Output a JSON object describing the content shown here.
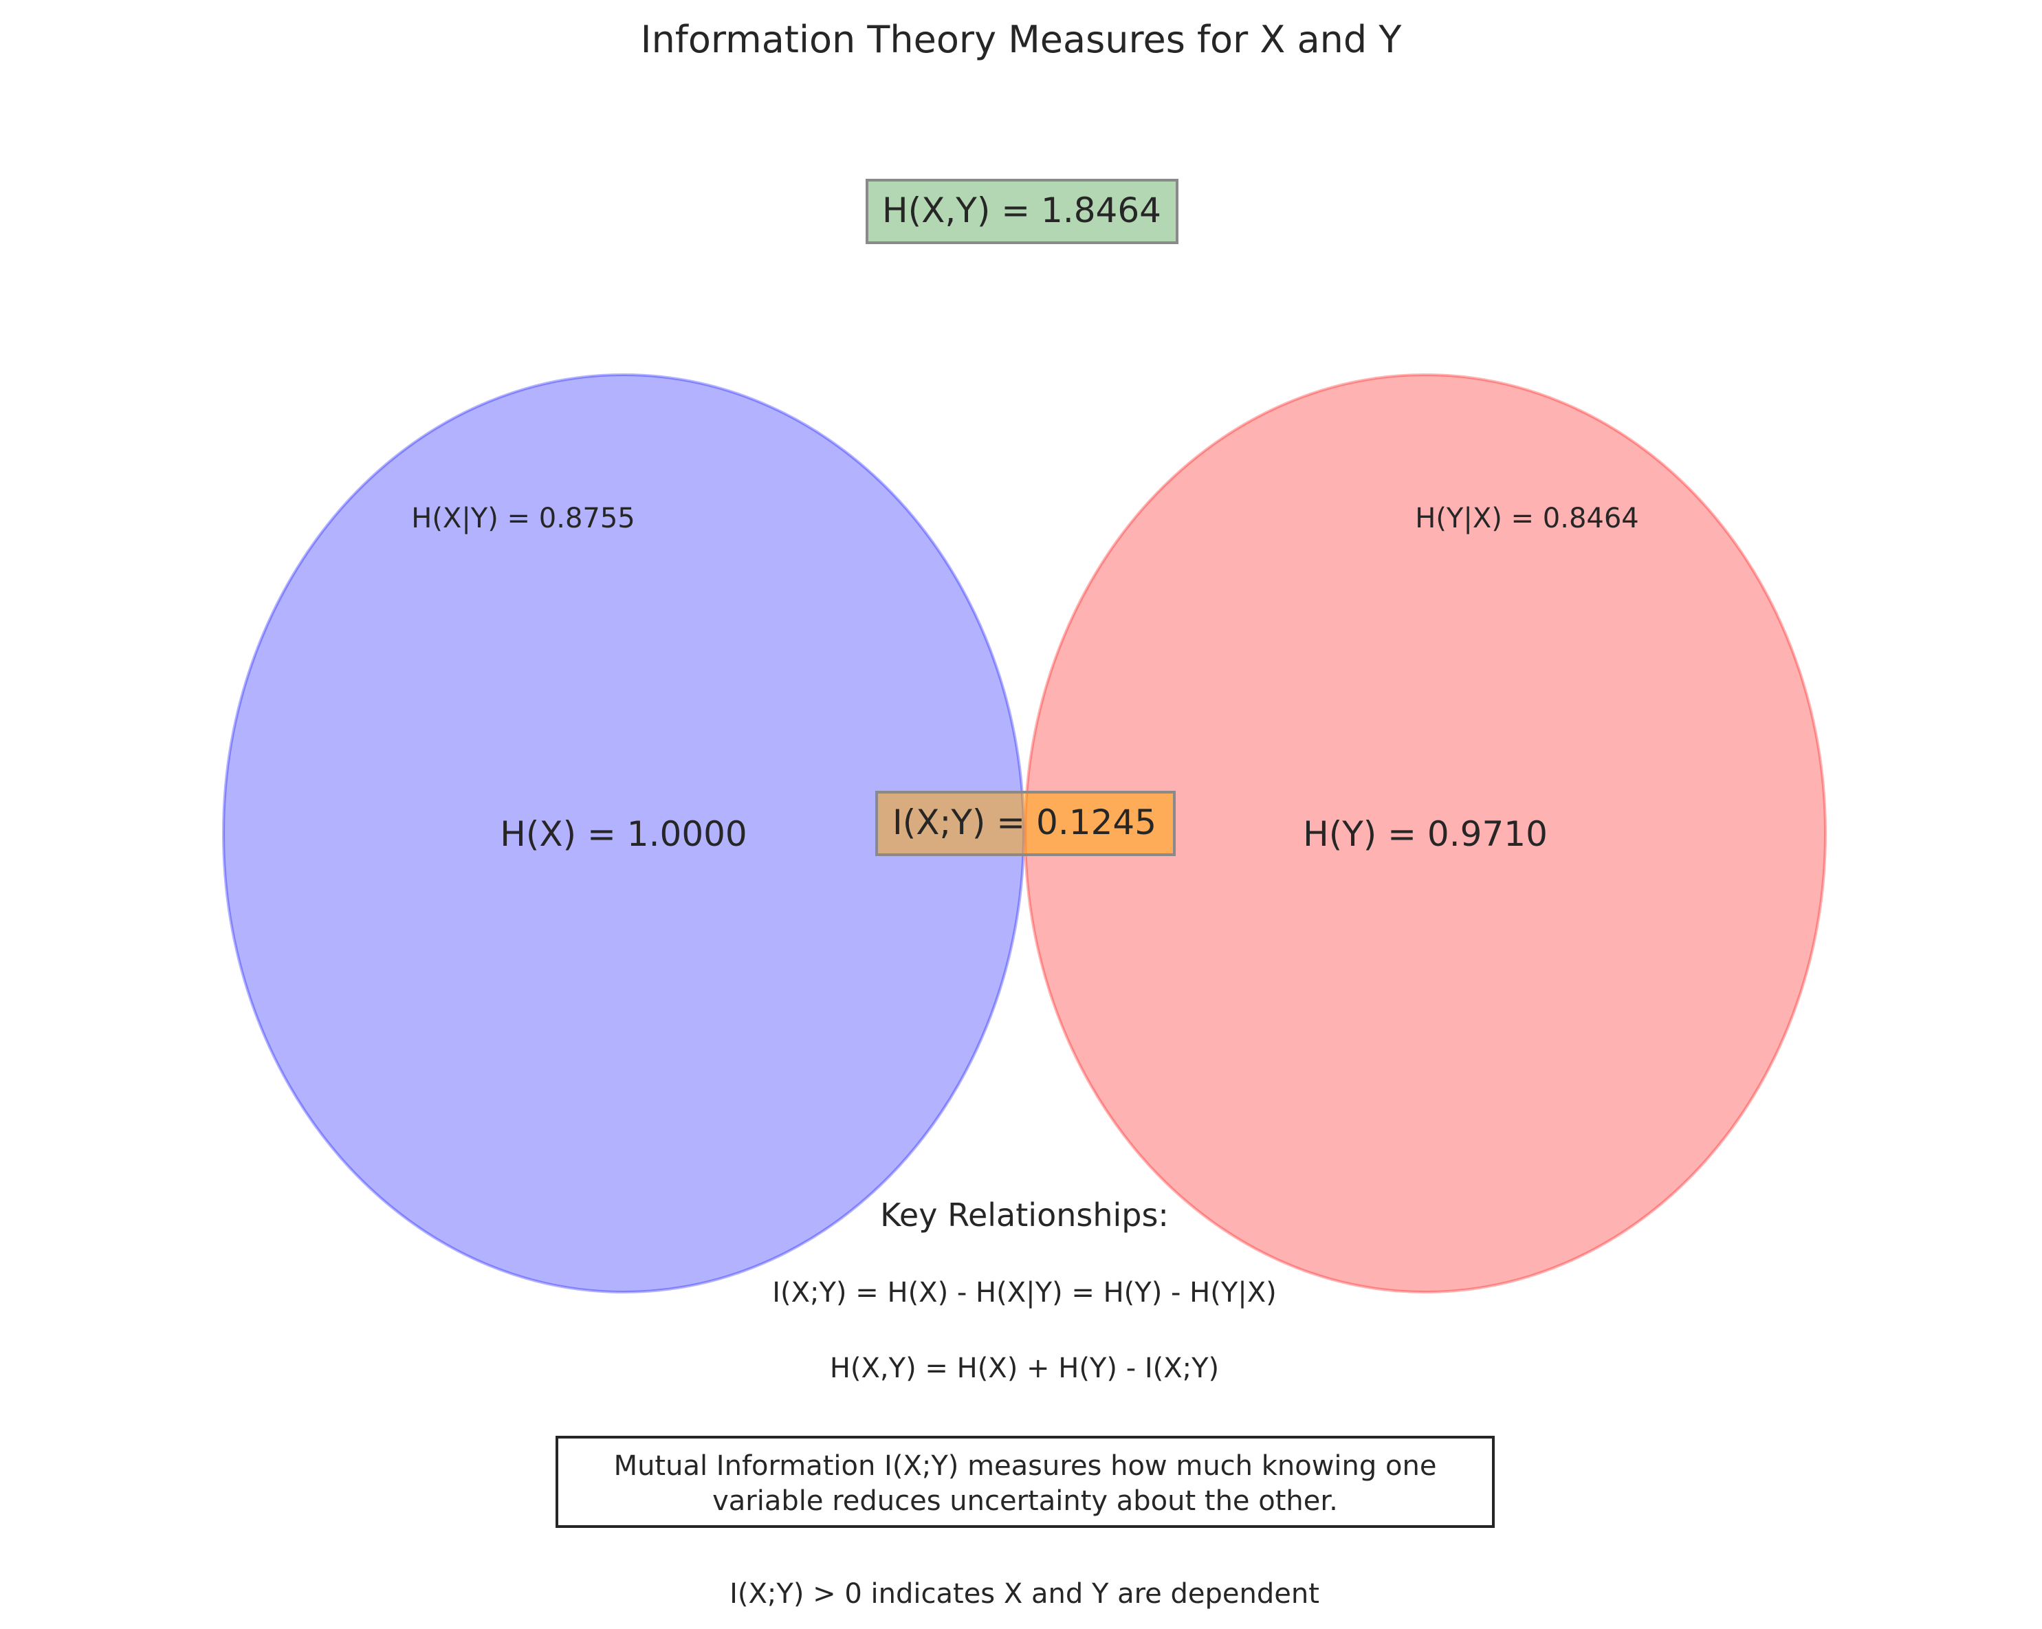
{
  "title": "Information Theory Measures for X and Y",
  "joint_entropy_label": "H(X,Y) = 1.8464",
  "circles": {
    "x": {
      "label": "H(X) = 1.0000",
      "conditional_label": "H(X|Y) = 0.8755",
      "color": "#0000ff"
    },
    "y": {
      "label": "H(Y) = 0.9710",
      "conditional_label": "H(Y|X) = 0.8464",
      "color": "#ff0000"
    }
  },
  "mutual_information_label": "I(X;Y) = 0.1245",
  "key_relationships": {
    "heading": "Key Relationships:",
    "formula_1": "I(X;Y) = H(X) - H(X|Y) = H(Y) - H(Y|X)",
    "formula_2": "H(X,Y) = H(X) + H(Y) - I(X;Y)"
  },
  "note": {
    "line_1": "Mutual Information I(X;Y) measures how much knowing one",
    "line_2": "variable reduces uncertainty about the other."
  },
  "footer": "I(X;Y) > 0 indicates X and Y are dependent",
  "colors": {
    "joint_box": "#b3d6b3",
    "mi_box": "#ffa500",
    "text": "#262626"
  }
}
